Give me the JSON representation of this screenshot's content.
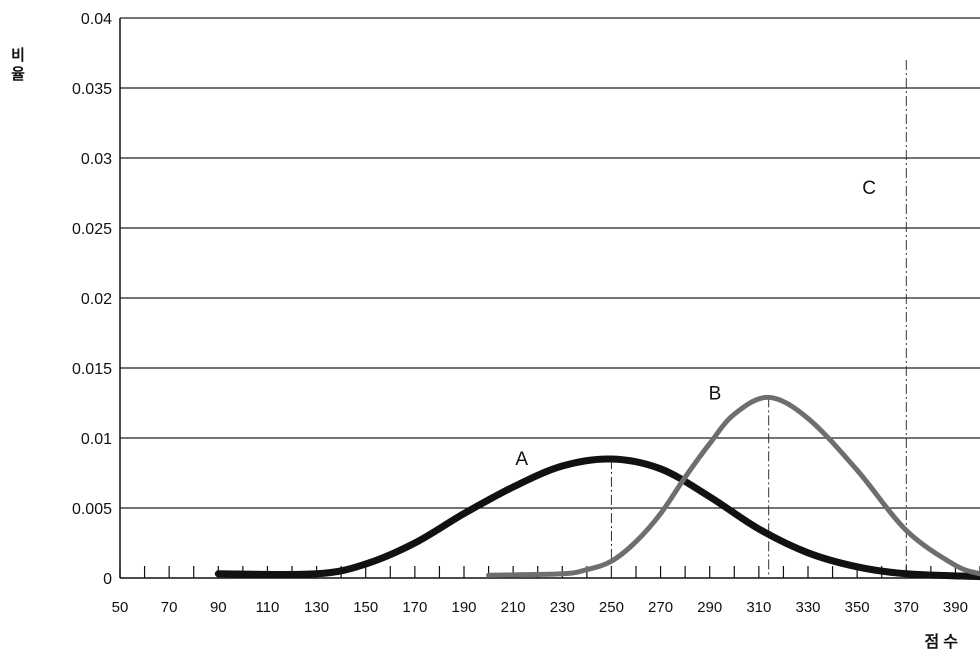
{
  "chart_data": {
    "type": "line",
    "xlabel": "점수",
    "ylabel": "비율",
    "xlim": [
      50,
      400
    ],
    "ylim": [
      0,
      0.04
    ],
    "x_ticks": [
      "50",
      "70",
      "90",
      "110",
      "130",
      "150",
      "170",
      "190",
      "210",
      "230",
      "250",
      "270",
      "290",
      "310",
      "330",
      "350",
      "370",
      "390"
    ],
    "y_ticks": [
      "0",
      "0.005",
      "0.01",
      "0.015",
      "0.02",
      "0.025",
      "0.03",
      "0.035",
      "0.04"
    ],
    "grid": "horizontal",
    "series": [
      {
        "name": "A",
        "color": "#111111",
        "peak": 250,
        "points": [
          [
            90,
            0.0003
          ],
          [
            130,
            0.0003
          ],
          [
            150,
            0.001
          ],
          [
            170,
            0.0025
          ],
          [
            190,
            0.0046
          ],
          [
            210,
            0.0065
          ],
          [
            230,
            0.008
          ],
          [
            250,
            0.0085
          ],
          [
            270,
            0.0078
          ],
          [
            290,
            0.0058
          ],
          [
            310,
            0.0035
          ],
          [
            330,
            0.0018
          ],
          [
            350,
            0.0008
          ],
          [
            370,
            0.0003
          ],
          [
            400,
            0.0001
          ]
        ]
      },
      {
        "name": "B",
        "color": "#6e6e6e",
        "peak": 314,
        "points": [
          [
            200,
            0.0002
          ],
          [
            230,
            0.0003
          ],
          [
            240,
            0.0006
          ],
          [
            250,
            0.0012
          ],
          [
            260,
            0.0026
          ],
          [
            270,
            0.0046
          ],
          [
            280,
            0.0072
          ],
          [
            290,
            0.0096
          ],
          [
            300,
            0.0117
          ],
          [
            314,
            0.0129
          ],
          [
            330,
            0.0114
          ],
          [
            350,
            0.0077
          ],
          [
            370,
            0.0034
          ],
          [
            390,
            0.0009
          ],
          [
            400,
            0.0003
          ]
        ]
      }
    ],
    "reference_lines": [
      {
        "x": 250
      },
      {
        "x": 314
      },
      {
        "x": 370,
        "label": "C"
      }
    ]
  }
}
